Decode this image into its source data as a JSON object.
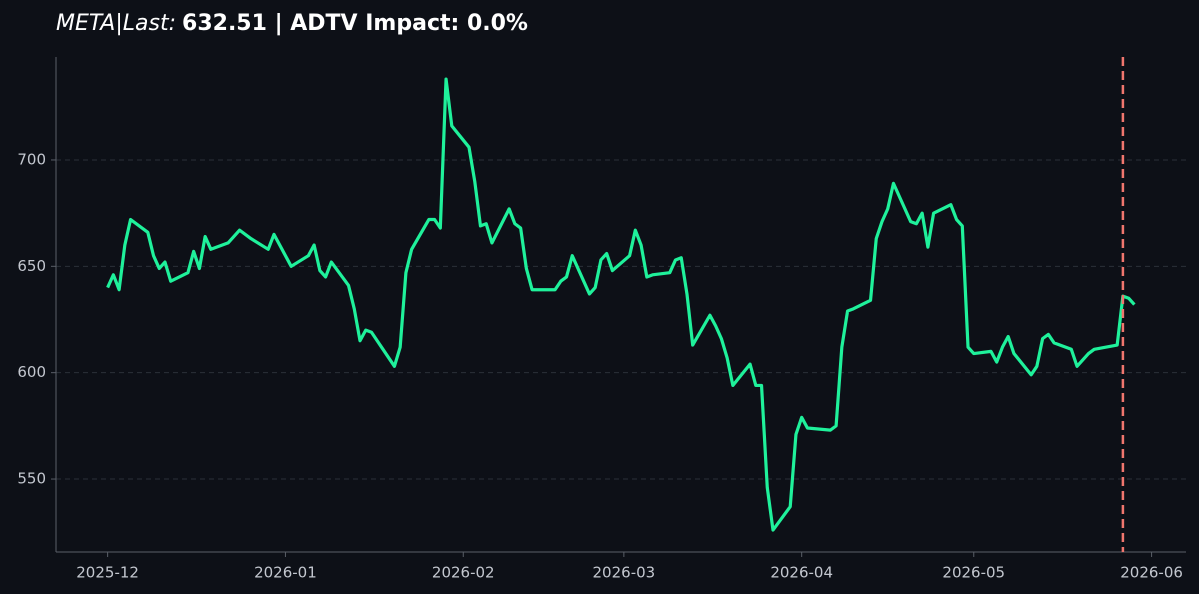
{
  "chart_data": {
    "type": "line",
    "title_parts": [
      "META|Last:",
      "632.51 | ADTV Impact: 0.0%"
    ],
    "x": [
      "2025-12-01",
      "2025-12-02",
      "2025-12-03",
      "2025-12-04",
      "2025-12-05",
      "2025-12-08",
      "2025-12-09",
      "2025-12-10",
      "2025-12-11",
      "2025-12-12",
      "2025-12-15",
      "2025-12-16",
      "2025-12-17",
      "2025-12-18",
      "2025-12-19",
      "2025-12-22",
      "2025-12-23",
      "2025-12-24",
      "2025-12-26",
      "2025-12-29",
      "2025-12-30",
      "2025-12-31",
      "2026-01-02",
      "2026-01-05",
      "2026-01-06",
      "2026-01-07",
      "2026-01-08",
      "2026-01-09",
      "2026-01-12",
      "2026-01-13",
      "2026-01-14",
      "2026-01-15",
      "2026-01-16",
      "2026-01-20",
      "2026-01-21",
      "2026-01-22",
      "2026-01-23",
      "2026-01-26",
      "2026-01-27",
      "2026-01-28",
      "2026-01-29",
      "2026-01-30",
      "2026-02-02",
      "2026-02-03",
      "2026-02-04",
      "2026-02-05",
      "2026-02-06",
      "2026-02-09",
      "2026-02-10",
      "2026-02-11",
      "2026-02-12",
      "2026-02-13",
      "2026-02-17",
      "2026-02-18",
      "2026-02-19",
      "2026-02-20",
      "2026-02-23",
      "2026-02-24",
      "2026-02-25",
      "2026-02-26",
      "2026-02-27",
      "2026-03-02",
      "2026-03-03",
      "2026-03-04",
      "2026-03-05",
      "2026-03-06",
      "2026-03-09",
      "2026-03-10",
      "2026-03-11",
      "2026-03-12",
      "2026-03-13",
      "2026-03-16",
      "2026-03-17",
      "2026-03-18",
      "2026-03-19",
      "2026-03-20",
      "2026-03-23",
      "2026-03-24",
      "2026-03-25",
      "2026-03-26",
      "2026-03-27",
      "2026-03-30",
      "2026-03-31",
      "2026-04-01",
      "2026-04-02",
      "2026-04-06",
      "2026-04-07",
      "2026-04-08",
      "2026-04-09",
      "2026-04-10",
      "2026-04-13",
      "2026-04-14",
      "2026-04-15",
      "2026-04-16",
      "2026-04-17",
      "2026-04-20",
      "2026-04-21",
      "2026-04-22",
      "2026-04-23",
      "2026-04-24",
      "2026-04-27",
      "2026-04-28",
      "2026-04-29",
      "2026-04-30",
      "2026-05-01",
      "2026-05-04",
      "2026-05-05",
      "2026-05-06",
      "2026-05-07",
      "2026-05-08",
      "2026-05-11",
      "2026-05-12",
      "2026-05-13",
      "2026-05-14",
      "2026-05-15",
      "2026-05-18",
      "2026-05-19",
      "2026-05-20",
      "2026-05-21",
      "2026-05-22",
      "2026-05-26",
      "2026-05-27",
      "2026-05-28",
      "2026-05-29"
    ],
    "values": [
      640,
      646,
      639,
      660,
      672,
      666,
      655,
      649,
      652,
      643,
      647,
      657,
      649,
      664,
      658,
      661,
      664,
      667,
      663,
      658,
      665,
      660,
      650,
      655,
      660,
      648,
      645,
      652,
      641,
      630,
      615,
      620,
      619,
      603,
      612,
      647,
      658,
      672,
      672,
      668,
      738,
      716,
      706,
      690,
      669,
      670,
      661,
      677,
      670,
      668,
      649,
      639,
      639,
      643,
      645,
      655,
      637,
      640,
      653,
      656,
      648,
      655,
      667,
      660,
      645,
      646,
      647,
      653,
      654,
      637,
      613,
      627,
      622,
      616,
      607,
      594,
      604,
      594,
      594,
      546,
      526,
      537,
      571,
      579,
      574,
      573,
      575,
      612,
      629,
      630,
      634,
      663,
      671,
      677,
      689,
      671,
      670,
      675,
      659,
      675,
      679,
      672,
      669,
      612,
      609,
      610,
      605,
      612,
      617,
      609,
      599,
      603,
      616,
      618,
      614,
      611,
      603,
      606,
      609,
      611,
      613,
      636,
      635,
      632
    ],
    "color": "#1ff19b",
    "vline": "2026-05-27",
    "vline_color": "#f0766e",
    "xlim": [
      "2025-11-22",
      "2026-06-07"
    ],
    "xticks": [
      {
        "value": "2025-12-01",
        "label": "2025-12"
      },
      {
        "value": "2026-01-01",
        "label": "2026-01"
      },
      {
        "value": "2026-02-01",
        "label": "2026-02"
      },
      {
        "value": "2026-03-01",
        "label": "2026-03"
      },
      {
        "value": "2026-04-01",
        "label": "2026-04"
      },
      {
        "value": "2026-05-01",
        "label": "2026-05"
      },
      {
        "value": "2026-06-01",
        "label": "2026-06"
      }
    ],
    "ylim": [
      515.7,
      748.4
    ],
    "yticks": [
      550,
      600,
      650,
      700
    ],
    "grid": true
  }
}
